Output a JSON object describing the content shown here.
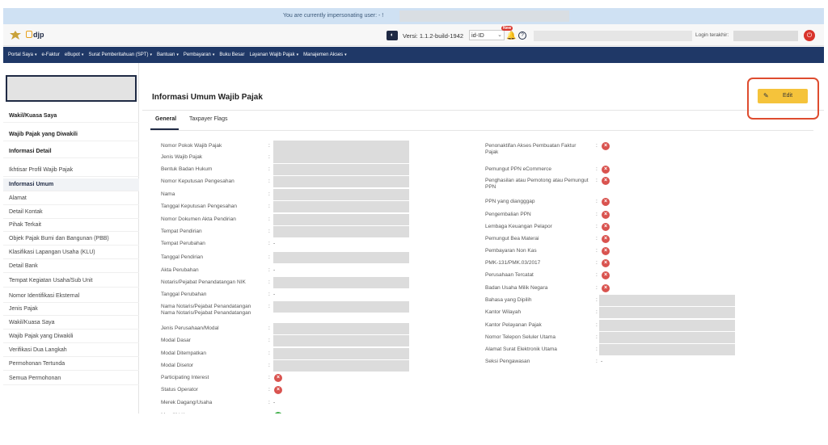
{
  "banner": {
    "text": "You are currently impersonating user: - !"
  },
  "header": {
    "logo_text": "djp",
    "version_label": "Versi: 1.1.2-build-1942",
    "language": "id-ID",
    "new_badge": "New",
    "help_icon": "?",
    "login_label": "Login terakhir:"
  },
  "nav": {
    "items": [
      {
        "label": "Portal Saya",
        "chevron": "▾"
      },
      {
        "label": "e-Faktur",
        "chevron": ""
      },
      {
        "label": "eBupot",
        "chevron": "▾"
      },
      {
        "label": "Surat Pemberitahuan (SPT)",
        "chevron": "▾"
      },
      {
        "label": "Bantuan",
        "chevron": "▾"
      },
      {
        "label": "Pembayaran",
        "chevron": "▾"
      },
      {
        "label": "Buku Besar",
        "chevron": ""
      },
      {
        "label": "Layanan Wajib Pajak",
        "chevron": "▾"
      },
      {
        "label": "Manajemen Akses",
        "chevron": "▾"
      }
    ]
  },
  "sidebar": {
    "items": [
      {
        "label": "Wakil/Kuasa Saya",
        "style": "b"
      },
      {
        "label": "Wajib Pajak yang Diwakili",
        "style": "b"
      },
      {
        "label": "Informasi Detail",
        "style": "b"
      },
      {
        "label": "Ikhtisar Profil Wajib Pajak",
        "style": ""
      },
      {
        "label": "Informasi Umum",
        "style": "active"
      },
      {
        "label": "Alamat",
        "style": ""
      },
      {
        "label": "Detail Kontak",
        "style": ""
      },
      {
        "label": "Pihak Terkait",
        "style": ""
      },
      {
        "label": "Objek Pajak Bumi dan Bangunan (PBB)",
        "style": ""
      },
      {
        "label": "Klasifikasi Lapangan Usaha (KLU)",
        "style": ""
      },
      {
        "label": "Detail Bank",
        "style": ""
      },
      {
        "label": "Tempat Kegiatan Usaha/Sub Unit",
        "style": ""
      },
      {
        "label": "Nomor Identifikasi Eksternal",
        "style": ""
      },
      {
        "label": "Jenis Pajak",
        "style": ""
      },
      {
        "label": "Wakil/Kuasa Saya",
        "style": ""
      },
      {
        "label": "Wajib Pajak yang Diwakili",
        "style": ""
      },
      {
        "label": "Verifikasi Dua Langkah",
        "style": ""
      },
      {
        "label": "Permohonan Tertunda",
        "style": ""
      },
      {
        "label": "Semua Permohonan",
        "style": ""
      }
    ]
  },
  "main": {
    "title": "Informasi Umum Wajib Pajak",
    "edit_label": "Edit",
    "tabs": [
      {
        "label": "General"
      },
      {
        "label": "Taxpayer Flags"
      }
    ],
    "colon": ":",
    "left_fields": [
      {
        "label": "Nomor Pokok Wajib Pajak",
        "value": "box"
      },
      {
        "label": "Jenis Wajib Pajak",
        "value": "box"
      },
      {
        "label": "Bentuk Badan Hukum",
        "value": "box"
      },
      {
        "label": "Nomor Keputusan Pengesahan",
        "value": "box"
      },
      {
        "label": "Nama",
        "value": "box"
      },
      {
        "label": "Tanggal Keputusan Pengesahan",
        "value": "box"
      },
      {
        "label": "Nomor Dokumen Akta Pendirian",
        "value": "box"
      },
      {
        "label": "Tempat Pendirian",
        "value": "box"
      },
      {
        "label": "Tempat Perubahan",
        "value": "-"
      },
      {
        "label": "Tanggal Pendirian",
        "value": "box"
      },
      {
        "label": "Akta Perubahan",
        "value": "-"
      },
      {
        "label": "Notaris/Pejabat Penandatangan NIK",
        "value": "box"
      },
      {
        "label": "Tanggal Perubahan",
        "value": "-"
      },
      {
        "label": "Nama Notaris/Pejabat Penandatangan Nama Notaris/Pejabat Penandatangan",
        "value": "box"
      },
      {
        "label": "Jenis Perusahaan/Modal",
        "value": "box"
      },
      {
        "label": "Modal Dasar",
        "value": "box"
      },
      {
        "label": "Modal Ditempatkan",
        "value": "box"
      },
      {
        "label": "Modal Disetor",
        "value": "box"
      },
      {
        "label": "Participating Interest",
        "value": "x"
      },
      {
        "label": "Status Operator",
        "value": "x"
      },
      {
        "label": "Merek Dagang/Usaha",
        "value": "-"
      },
      {
        "label": "Memiliki Karyawan",
        "value": "ok"
      }
    ],
    "right_fields": [
      {
        "label": "Penonaktifan Akses Pembuatan Faktur Pajak",
        "value": "x"
      },
      {
        "label": "Pemungut PPN eCommerce",
        "value": "x"
      },
      {
        "label": "Penghasilan atau Pemotong atau Pemungut PPN",
        "value": "x"
      },
      {
        "label": "PPN yang diangggap",
        "value": "x"
      },
      {
        "label": "Pengembalian PPN",
        "value": "x"
      },
      {
        "label": "Lembaga Keuangan Pelapor",
        "value": "x"
      },
      {
        "label": "Pemungut Bea Materai",
        "value": "x"
      },
      {
        "label": "Pembayaran Non Kas",
        "value": "x"
      },
      {
        "label": "PMK-131/PMK.03/2017",
        "value": "x"
      },
      {
        "label": "Perusahaan Tercatat",
        "value": "x"
      },
      {
        "label": "Badan Usaha Milik Negara",
        "value": "x"
      },
      {
        "label": "Bahasa yang Dipilih",
        "value": "box"
      },
      {
        "label": "Kantor Wilayah",
        "value": "box"
      },
      {
        "label": "Kantor Pelayanan Pajak",
        "value": "box"
      },
      {
        "label": "Nomor Telepon Seluler Utama",
        "value": "box"
      },
      {
        "label": "Alamat Surat Elektronik Utama",
        "value": "box"
      },
      {
        "label": "Seksi Pengawasan",
        "value": "-"
      }
    ]
  },
  "colors": {
    "nav": "#1f3867",
    "accent": "#f5c33b",
    "highlight": "#de4c2f",
    "danger": "#d9534f",
    "success": "#3fae49"
  }
}
